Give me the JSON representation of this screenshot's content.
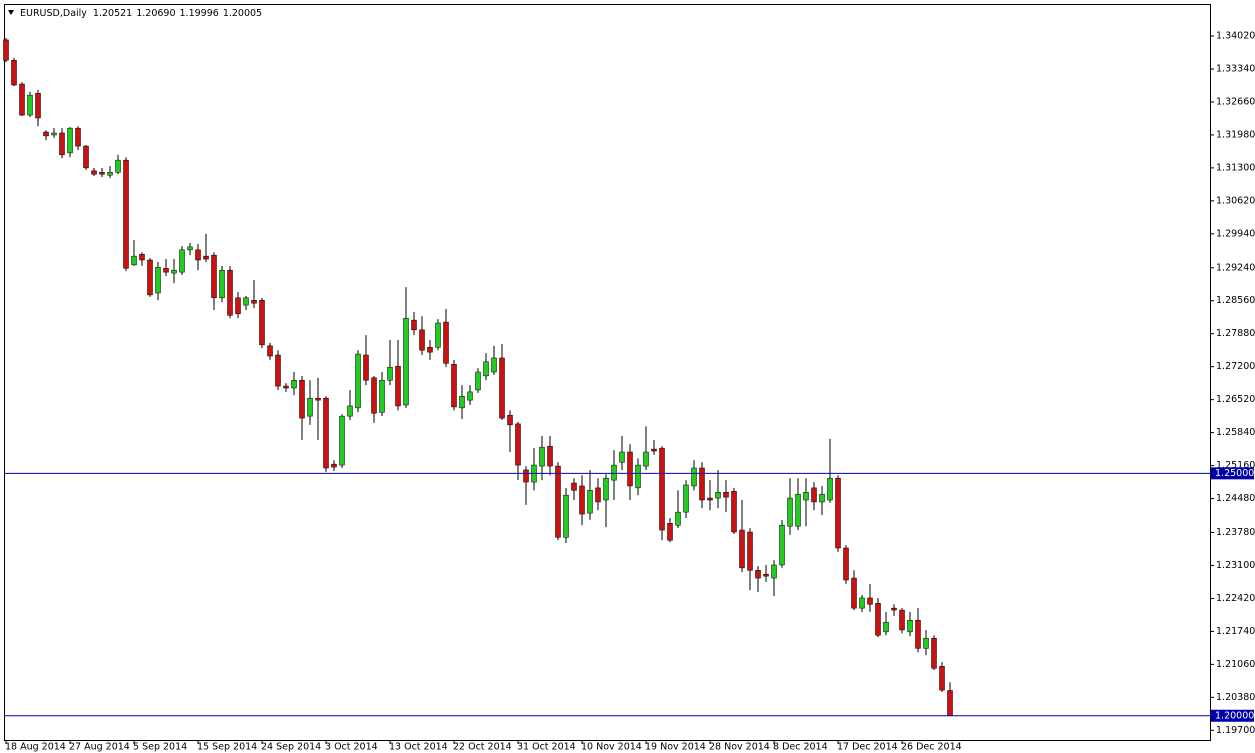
{
  "chart_data": {
    "type": "candlestick",
    "title": "EURUSD,Daily",
    "info": [
      "1.20521",
      "1.20690",
      "1.19996",
      "1.20005"
    ],
    "colors": {
      "up": "#22cc22",
      "down": "#cc1111",
      "wick": "#000000",
      "hline": "#0000aa"
    },
    "grid": false,
    "x": [
      0,
      1,
      2,
      3,
      4,
      5,
      6,
      7,
      8,
      9,
      10,
      11,
      12,
      13,
      14,
      15,
      16,
      17,
      18,
      19,
      20,
      21,
      22,
      23,
      24,
      25,
      26,
      27,
      28,
      29,
      30,
      31,
      32,
      33,
      34,
      35,
      36,
      37,
      38,
      39,
      40,
      41,
      42,
      43,
      44,
      45,
      46,
      47,
      48,
      49,
      50,
      51,
      52,
      53,
      54,
      55,
      56,
      57,
      58,
      59,
      60,
      61,
      62,
      63,
      64,
      65,
      66,
      67,
      68,
      69,
      70,
      71,
      72,
      73,
      74,
      75,
      76,
      77,
      78,
      79,
      80,
      81,
      82,
      83,
      84,
      85,
      86,
      87,
      88,
      89,
      90,
      91,
      92,
      93,
      94,
      95,
      96,
      97,
      98,
      99,
      100,
      101,
      102,
      103,
      104,
      105,
      106,
      107,
      108,
      109,
      110,
      111,
      112,
      113,
      114,
      115,
      116,
      117,
      118
    ],
    "open": [
      1.3394,
      1.3352,
      1.3303,
      1.3239,
      1.3284,
      1.3204,
      1.3198,
      1.3202,
      1.3161,
      1.3212,
      1.3175,
      1.3124,
      1.3121,
      1.3115,
      1.3121,
      1.3146,
      1.293,
      1.2952,
      1.294,
      1.2872,
      1.2923,
      1.2913,
      1.2915,
      1.2961,
      1.2961,
      1.2948,
      1.295,
      1.2862,
      1.2919,
      1.2862,
      1.2847,
      1.2857,
      1.2857,
      1.2763,
      1.2744,
      1.268,
      1.2676,
      1.2692,
      1.2618,
      1.2655,
      1.2655,
      1.2519,
      1.2517,
      1.2618,
      1.2635,
      1.2744,
      1.2697,
      1.2626,
      1.2692,
      1.2721,
      1.2641,
      1.2816,
      1.2796,
      1.276,
      1.276,
      1.2812,
      1.2725,
      1.2635,
      1.2651,
      1.2672,
      1.2701,
      1.2709,
      1.2738,
      1.262,
      1.2602,
      1.2507,
      1.2482,
      1.2515,
      1.2556,
      1.2515,
      1.2368,
      1.248,
      1.2474,
      1.2418,
      1.247,
      1.2445,
      1.2486,
      1.2523,
      1.2544,
      1.247,
      1.2515,
      1.255,
      1.2552,
      1.2397,
      1.2393,
      1.242,
      1.2474,
      1.2511,
      1.2449,
      1.2449,
      1.2461,
      1.2463,
      1.2383,
      1.2379,
      1.23,
      1.2292,
      1.2284,
      1.2311,
      1.2391,
      1.2391,
      1.2445,
      1.247,
      1.2441,
      1.2445,
      1.249,
      1.2346,
      1.2284,
      1.2222,
      1.2243,
      1.2232,
      1.2173,
      1.2222,
      1.2218,
      1.2173,
      1.2197,
      1.2139,
      1.216,
      1.2102,
      1.20521
    ],
    "high": [
      1.3398,
      1.3357,
      1.3307,
      1.3287,
      1.3291,
      1.3208,
      1.3212,
      1.3212,
      1.3214,
      1.3216,
      1.3177,
      1.313,
      1.313,
      1.3134,
      1.3157,
      1.3152,
      1.2981,
      1.2956,
      1.2944,
      1.2936,
      1.2942,
      1.2942,
      1.2969,
      1.2975,
      1.2973,
      1.2994,
      1.2956,
      1.2928,
      1.2928,
      1.2874,
      1.2866,
      1.2899,
      1.2862,
      1.2769,
      1.2754,
      1.2686,
      1.2709,
      1.2701,
      1.2692,
      1.2697,
      1.2659,
      1.2527,
      1.2622,
      1.2672,
      1.2754,
      1.2785,
      1.2701,
      1.2709,
      1.2775,
      1.2775,
      1.2884,
      1.2833,
      1.2824,
      1.2775,
      1.2818,
      1.2839,
      1.2734,
      1.2682,
      1.2682,
      1.2717,
      1.2748,
      1.2763,
      1.2767,
      1.263,
      1.2606,
      1.2515,
      1.2552,
      1.2577,
      1.2577,
      1.2523,
      1.247,
      1.249,
      1.2496,
      1.2507,
      1.249,
      1.2498,
      1.2548,
      1.2577,
      1.256,
      1.2531,
      1.2597,
      1.2569,
      1.2556,
      1.2408,
      1.2465,
      1.2486,
      1.2527,
      1.2523,
      1.2486,
      1.2507,
      1.2486,
      1.247,
      1.2445,
      1.2387,
      1.2309,
      1.2311,
      1.2321,
      1.2404,
      1.249,
      1.249,
      1.249,
      1.2482,
      1.2474,
      1.2571,
      1.2496,
      1.2352,
      1.23,
      1.2249,
      1.2272,
      1.2243,
      1.2214,
      1.223,
      1.2222,
      1.2214,
      1.2222,
      1.2177,
      1.2166,
      1.2111,
      1.2069
    ],
    "low": [
      1.3348,
      1.3299,
      1.3237,
      1.3235,
      1.3216,
      1.3187,
      1.3192,
      1.315,
      1.3152,
      1.3167,
      1.3126,
      1.3113,
      1.3111,
      1.3109,
      1.3117,
      1.2917,
      1.2928,
      1.2928,
      1.2864,
      1.2857,
      1.2907,
      1.2892,
      1.2909,
      1.295,
      1.2919,
      1.2936,
      1.2837,
      1.2853,
      1.282,
      1.282,
      1.2837,
      1.2841,
      1.2758,
      1.2734,
      1.2672,
      1.2668,
      1.2661,
      1.2569,
      1.26,
      1.2569,
      1.2503,
      1.2505,
      1.2511,
      1.261,
      1.2626,
      1.2682,
      1.2604,
      1.2618,
      1.2682,
      1.263,
      1.2635,
      1.2785,
      1.2744,
      1.2734,
      1.2754,
      1.2719,
      1.263,
      1.2612,
      1.2641,
      1.2666,
      1.2692,
      1.2703,
      1.261,
      1.2544,
      1.2486,
      1.2435,
      1.2465,
      1.2486,
      1.2496,
      1.2362,
      1.2356,
      1.2445,
      1.2393,
      1.2404,
      1.2424,
      1.2389,
      1.2445,
      1.2507,
      1.2445,
      1.2455,
      1.2507,
      1.2538,
      1.2362,
      1.2358,
      1.2387,
      1.2408,
      1.2465,
      1.2428,
      1.2424,
      1.2428,
      1.242,
      1.2375,
      1.2296,
      1.2259,
      1.2255,
      1.2276,
      1.2247,
      1.2305,
      1.2373,
      1.2383,
      1.2391,
      1.2424,
      1.2414,
      1.2439,
      1.2338,
      1.2272,
      1.2218,
      1.2214,
      1.2214,
      1.2162,
      1.2166,
      1.2206,
      1.217,
      1.2164,
      1.2131,
      1.2125,
      1.2094,
      1.2049,
      1.19996
    ],
    "close": [
      1.3352,
      1.3301,
      1.3239,
      1.328,
      1.3233,
      1.3196,
      1.3202,
      1.3157,
      1.3212,
      1.3175,
      1.313,
      1.3117,
      1.3117,
      1.3121,
      1.3146,
      1.2923,
      1.2948,
      1.294,
      1.2868,
      1.2925,
      1.2915,
      1.2919,
      1.2961,
      1.2967,
      1.294,
      1.2942,
      1.2862,
      1.2919,
      1.2826,
      1.2829,
      1.2862,
      1.2851,
      1.2765,
      1.2742,
      1.268,
      1.2676,
      1.2692,
      1.2614,
      1.2655,
      1.2651,
      1.2511,
      1.2513,
      1.2618,
      1.2639,
      1.2746,
      1.2692,
      1.2624,
      1.2692,
      1.2719,
      1.2639,
      1.282,
      1.2796,
      1.2754,
      1.275,
      1.281,
      1.2727,
      1.2637,
      1.2659,
      1.2668,
      1.2709,
      1.273,
      1.2738,
      1.2614,
      1.26,
      1.2517,
      1.2482,
      1.2517,
      1.2554,
      1.2515,
      1.2368,
      1.2455,
      1.2465,
      1.2416,
      1.2465,
      1.2441,
      1.249,
      1.2517,
      1.2544,
      1.2474,
      1.2517,
      1.2544,
      1.2546,
      1.2383,
      1.2362,
      1.242,
      1.2476,
      1.2511,
      1.2445,
      1.2445,
      1.2461,
      1.2451,
      1.2379,
      1.2305,
      1.23,
      1.2284,
      1.2288,
      1.2311,
      1.2393,
      1.2449,
      1.2457,
      1.2461,
      1.2441,
      1.2457,
      1.249,
      1.2346,
      1.228,
      1.2222,
      1.2243,
      1.223,
      1.2166,
      1.2193,
      1.2218,
      1.2177,
      1.2197,
      1.2139,
      1.216,
      1.2098,
      1.2053,
      1.20005
    ],
    "xlim": [
      -0.25,
      150.5
    ],
    "xticks": [
      {
        "value": 0,
        "label": "18 Aug 2014"
      },
      {
        "value": 8,
        "label": "27 Aug 2014"
      },
      {
        "value": 16,
        "label": "5 Sep 2014"
      },
      {
        "value": 24,
        "label": "15 Sep 2014"
      },
      {
        "value": 32,
        "label": "24 Sep 2014"
      },
      {
        "value": 40,
        "label": "3 Oct 2014"
      },
      {
        "value": 48,
        "label": "13 Oct 2014"
      },
      {
        "value": 56,
        "label": "22 Oct 2014"
      },
      {
        "value": 64,
        "label": "31 Oct 2014"
      },
      {
        "value": 72,
        "label": "10 Nov 2014"
      },
      {
        "value": 80,
        "label": "19 Nov 2014"
      },
      {
        "value": 88,
        "label": "28 Nov 2014"
      },
      {
        "value": 96,
        "label": "8 Dec 2014"
      },
      {
        "value": 104,
        "label": "17 Dec 2014"
      },
      {
        "value": 112,
        "label": "26 Dec 2014"
      }
    ],
    "ylim": [
      1.195,
      1.3466
    ],
    "yticks": [
      {
        "value": 1.3402,
        "label": "1.34020"
      },
      {
        "value": 1.3334,
        "label": "1.33340"
      },
      {
        "value": 1.3266,
        "label": "1.32660"
      },
      {
        "value": 1.3198,
        "label": "1.31980"
      },
      {
        "value": 1.313,
        "label": "1.31300"
      },
      {
        "value": 1.3062,
        "label": "1.30620"
      },
      {
        "value": 1.2994,
        "label": "1.29940"
      },
      {
        "value": 1.2924,
        "label": "1.29240"
      },
      {
        "value": 1.2856,
        "label": "1.28560"
      },
      {
        "value": 1.2788,
        "label": "1.27880"
      },
      {
        "value": 1.272,
        "label": "1.27200"
      },
      {
        "value": 1.2652,
        "label": "1.26520"
      },
      {
        "value": 1.2584,
        "label": "1.25840"
      },
      {
        "value": 1.2516,
        "label": "1.25160"
      },
      {
        "value": 1.2448,
        "label": "1.24480"
      },
      {
        "value": 1.2378,
        "label": "1.23780"
      },
      {
        "value": 1.231,
        "label": "1.23100"
      },
      {
        "value": 1.2242,
        "label": "1.22420"
      },
      {
        "value": 1.2174,
        "label": "1.21740"
      },
      {
        "value": 1.2106,
        "label": "1.21060"
      },
      {
        "value": 1.2038,
        "label": "1.20380"
      },
      {
        "value": 1.197,
        "label": "1.19700"
      }
    ],
    "hlines": [
      {
        "value": 1.25,
        "label": "1.25000"
      },
      {
        "value": 1.2,
        "label": "1.20000"
      }
    ]
  }
}
